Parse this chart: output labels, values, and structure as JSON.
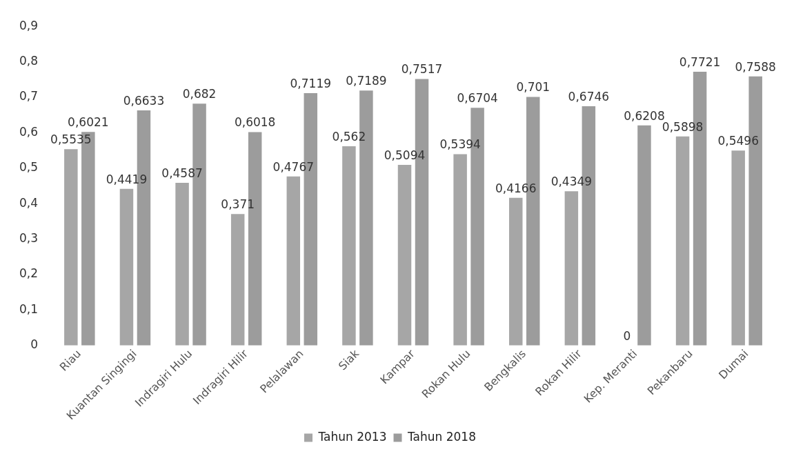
{
  "chart_data": {
    "type": "bar",
    "categories": [
      "Riau",
      "Kuantan Singingi",
      "Indragiri Hulu",
      "Indragiri Hilir",
      "Pelalawan",
      "Siak",
      "Kampar",
      "Rokan Hulu",
      "Bengkalis",
      "Rokan Hilir",
      "Kep. Meranti",
      "Pekanbaru",
      "Dumai"
    ],
    "series": [
      {
        "name": "Tahun 2013",
        "color": "#a6a6a6",
        "values": [
          0.5535,
          0.4419,
          0.4587,
          0.371,
          0.4767,
          0.562,
          0.5094,
          0.5394,
          0.4166,
          0.4349,
          0,
          0.5898,
          0.5496
        ],
        "value_labels": [
          "0,5535",
          "0,4419",
          "0,4587",
          "0,371",
          "0,4767",
          "0,562",
          "0,5094",
          "0,5394",
          "0,4166",
          "0,4349",
          "0",
          "0,5898",
          "0,5496"
        ]
      },
      {
        "name": "Tahun 2018",
        "color": "#9c9c9c",
        "values": [
          0.6021,
          0.6633,
          0.682,
          0.6018,
          0.7119,
          0.7189,
          0.7517,
          0.6704,
          0.701,
          0.6746,
          0.6208,
          0.7721,
          0.7588
        ],
        "value_labels": [
          "0,6021",
          "0,6633",
          "0,682",
          "0,6018",
          "0,7119",
          "0,7189",
          "0,7517",
          "0,6704",
          "0,701",
          "0,6746",
          "0,6208",
          "0,7721",
          "0,7588"
        ]
      }
    ],
    "ylim": [
      0,
      0.9
    ],
    "yticks": [
      {
        "value": 0,
        "label": "0"
      },
      {
        "value": 0.1,
        "label": "0,1"
      },
      {
        "value": 0.2,
        "label": "0,2"
      },
      {
        "value": 0.3,
        "label": "0,3"
      },
      {
        "value": 0.4,
        "label": "0,4"
      },
      {
        "value": 0.5,
        "label": "0,5"
      },
      {
        "value": 0.6,
        "label": "0,6"
      },
      {
        "value": 0.7,
        "label": "0,7"
      },
      {
        "value": 0.8,
        "label": "0,8"
      },
      {
        "value": 0.9,
        "label": "0,9"
      }
    ],
    "grid": false,
    "legend": "bottom"
  }
}
